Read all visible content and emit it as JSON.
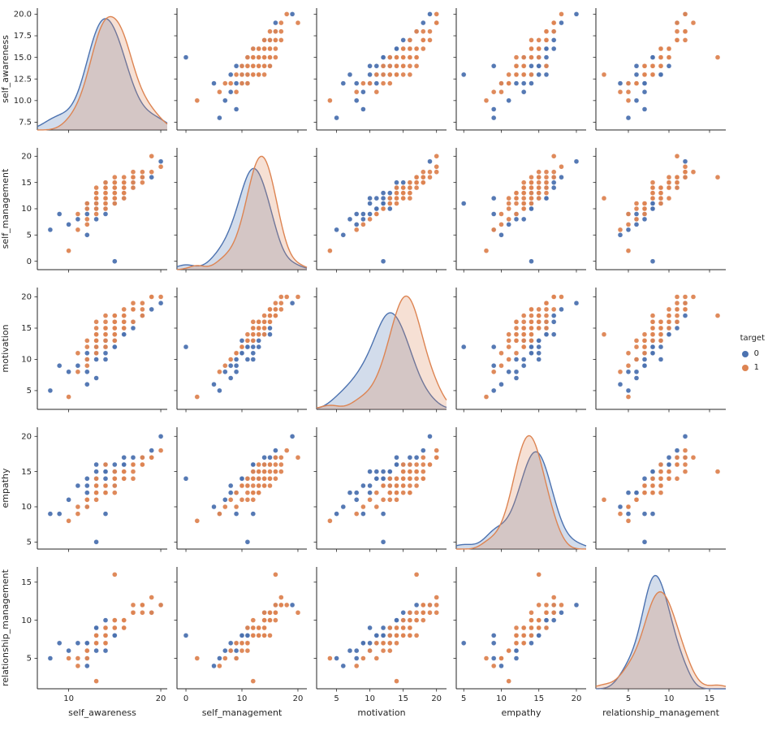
{
  "chart_data": {
    "type": "pairplot",
    "description": "Seaborn-style pair plot (scatter matrix) of 5 emotional-intelligence features colored by target class; diagonal shows KDE density curves per class.",
    "legend": {
      "title": "target",
      "entries": [
        {
          "label": "0",
          "color": "#4c72b0"
        },
        {
          "label": "1",
          "color": "#dd8452"
        }
      ]
    },
    "palette": {
      "0": "#4c72b0",
      "1": "#dd8452"
    },
    "style": {
      "spine_color": "#262626",
      "kde_fill_opacity": 0.25,
      "point_radius": 3,
      "background": "#ffffff"
    },
    "variables": [
      {
        "key": "self_awareness",
        "label": "self_awareness",
        "lim": [
          6.6,
          20.7
        ],
        "yticks": [
          7.5,
          10,
          12.5,
          15,
          17.5,
          20
        ],
        "ytick_labels": [
          "7.5",
          "10.0",
          "12.5",
          "15.0",
          "17.5",
          "20.0"
        ],
        "xticks": [
          10,
          20
        ],
        "xtick_labels": [
          "10",
          "20"
        ]
      },
      {
        "key": "self_management",
        "label": "self_management",
        "lim": [
          -1.6,
          21.6
        ],
        "yticks": [
          0,
          5,
          10,
          15,
          20
        ],
        "ytick_labels": [
          "0",
          "5",
          "10",
          "15",
          "20"
        ],
        "xticks": [
          0,
          10,
          20
        ],
        "xtick_labels": [
          "0",
          "10",
          "20"
        ]
      },
      {
        "key": "motivation",
        "label": "motivation",
        "lim": [
          2.0,
          21.5
        ],
        "yticks": [
          5,
          10,
          15,
          20
        ],
        "ytick_labels": [
          "5",
          "10",
          "15",
          "20"
        ],
        "xticks": [
          5,
          10,
          15,
          20
        ],
        "xtick_labels": [
          "5",
          "10",
          "15",
          "20"
        ]
      },
      {
        "key": "empathy",
        "label": "empathy",
        "lim": [
          4.0,
          21.3
        ],
        "yticks": [
          5,
          10,
          15,
          20
        ],
        "ytick_labels": [
          "5",
          "10",
          "15",
          "20"
        ],
        "xticks": [
          5,
          10,
          15,
          20
        ],
        "xtick_labels": [
          "5",
          "10",
          "15",
          "20"
        ]
      },
      {
        "key": "relationship_management",
        "label": "relationship_management",
        "lim": [
          1.0,
          17.0
        ],
        "yticks": [
          5,
          10,
          15
        ],
        "ytick_labels": [
          "5",
          "10",
          "15"
        ],
        "xticks": [
          5,
          10,
          15
        ],
        "xtick_labels": [
          "5",
          "10",
          "15"
        ]
      }
    ],
    "columns": [
      "self_awareness",
      "self_management",
      "motivation",
      "empathy",
      "relationship_management",
      "target"
    ],
    "records": [
      [
        13,
        11,
        12,
        14,
        8,
        0
      ],
      [
        14,
        12,
        13,
        15,
        9,
        0
      ],
      [
        15,
        13,
        14,
        13,
        8,
        0
      ],
      [
        12,
        10,
        11,
        14,
        7,
        0
      ],
      [
        16,
        14,
        15,
        15,
        10,
        0
      ],
      [
        14,
        9,
        10,
        12,
        6,
        0
      ],
      [
        13,
        12,
        14,
        16,
        9,
        0
      ],
      [
        15,
        11,
        12,
        14,
        8,
        0
      ],
      [
        17,
        15,
        16,
        17,
        11,
        0
      ],
      [
        11,
        8,
        9,
        13,
        7,
        0
      ],
      [
        14,
        13,
        13,
        15,
        8,
        0
      ],
      [
        16,
        12,
        15,
        16,
        9,
        0
      ],
      [
        13,
        10,
        11,
        14,
        8,
        0
      ],
      [
        15,
        14,
        16,
        15,
        10,
        0
      ],
      [
        12,
        9,
        8,
        12,
        5,
        0
      ],
      [
        18,
        16,
        17,
        17,
        12,
        0
      ],
      [
        14,
        11,
        13,
        13,
        7,
        0
      ],
      [
        13,
        12,
        10,
        15,
        9,
        0
      ],
      [
        16,
        15,
        14,
        16,
        10,
        0
      ],
      [
        15,
        0,
        12,
        14,
        8,
        0
      ],
      [
        10,
        7,
        8,
        11,
        6,
        0
      ],
      [
        14,
        12,
        12,
        9,
        8,
        0
      ],
      [
        9,
        9,
        9,
        9,
        7,
        0
      ],
      [
        17,
        14,
        15,
        16,
        11,
        0
      ],
      [
        13,
        13,
        14,
        14,
        9,
        0
      ],
      [
        15,
        12,
        13,
        15,
        8,
        0
      ],
      [
        16,
        13,
        16,
        14,
        9,
        0
      ],
      [
        12,
        11,
        10,
        13,
        7,
        0
      ],
      [
        14,
        15,
        15,
        16,
        10,
        0
      ],
      [
        19,
        16,
        18,
        18,
        11,
        0
      ],
      [
        13,
        8,
        7,
        12,
        6,
        0
      ],
      [
        15,
        13,
        12,
        15,
        9,
        0
      ],
      [
        14,
        10,
        13,
        14,
        8,
        0
      ],
      [
        16,
        14,
        14,
        17,
        10,
        0
      ],
      [
        12,
        5,
        6,
        10,
        4,
        0
      ],
      [
        20,
        19,
        19,
        20,
        12,
        0
      ],
      [
        14,
        12,
        11,
        15,
        8,
        0
      ],
      [
        13,
        11,
        13,
        13,
        9,
        0
      ],
      [
        15,
        15,
        16,
        16,
        10,
        0
      ],
      [
        8,
        6,
        5,
        9,
        5,
        0
      ],
      [
        13,
        11,
        12,
        5,
        7,
        0
      ],
      [
        14,
        13,
        15,
        13,
        8,
        1
      ],
      [
        15,
        14,
        16,
        14,
        9,
        1
      ],
      [
        13,
        12,
        14,
        12,
        8,
        1
      ],
      [
        16,
        15,
        17,
        15,
        10,
        1
      ],
      [
        14,
        11,
        13,
        13,
        7,
        1
      ],
      [
        17,
        16,
        18,
        14,
        11,
        1
      ],
      [
        15,
        13,
        16,
        12,
        9,
        1
      ],
      [
        12,
        10,
        12,
        11,
        6,
        1
      ],
      [
        16,
        14,
        15,
        15,
        10,
        1
      ],
      [
        13,
        13,
        14,
        14,
        8,
        1
      ],
      [
        18,
        17,
        19,
        16,
        12,
        1
      ],
      [
        14,
        12,
        15,
        13,
        9,
        1
      ],
      [
        15,
        15,
        17,
        14,
        10,
        1
      ],
      [
        11,
        9,
        11,
        10,
        5,
        1
      ],
      [
        16,
        13,
        16,
        15,
        9,
        1
      ],
      [
        13,
        11,
        13,
        12,
        7,
        1
      ],
      [
        17,
        15,
        18,
        16,
        11,
        1
      ],
      [
        14,
        14,
        16,
        13,
        8,
        1
      ],
      [
        15,
        12,
        14,
        14,
        9,
        1
      ],
      [
        12,
        8,
        10,
        11,
        6,
        1
      ],
      [
        16,
        16,
        17,
        15,
        10,
        1
      ],
      [
        14,
        13,
        15,
        12,
        8,
        1
      ],
      [
        13,
        10,
        12,
        13,
        7,
        1
      ],
      [
        18,
        16,
        18,
        17,
        12,
        1
      ],
      [
        15,
        14,
        15,
        14,
        9,
        1
      ],
      [
        16,
        12,
        16,
        15,
        10,
        1
      ],
      [
        14,
        15,
        17,
        13,
        8,
        1
      ],
      [
        13,
        9,
        11,
        12,
        7,
        1
      ],
      [
        17,
        14,
        16,
        16,
        11,
        1
      ],
      [
        15,
        13,
        14,
        13,
        9,
        1
      ],
      [
        12,
        11,
        13,
        11,
        6,
        1
      ],
      [
        16,
        15,
        16,
        14,
        10,
        1
      ],
      [
        14,
        12,
        14,
        12,
        8,
        1
      ],
      [
        19,
        17,
        20,
        17,
        13,
        1
      ],
      [
        13,
        14,
        15,
        13,
        8,
        1
      ],
      [
        15,
        11,
        13,
        14,
        9,
        1
      ],
      [
        16,
        14,
        17,
        15,
        10,
        1
      ],
      [
        14,
        10,
        12,
        13,
        7,
        1
      ],
      [
        17,
        16,
        19,
        16,
        11,
        1
      ],
      [
        15,
        15,
        16,
        14,
        10,
        1
      ],
      [
        13,
        12,
        13,
        12,
        8,
        1
      ],
      [
        12,
        7,
        9,
        10,
        5,
        1
      ],
      [
        16,
        13,
        15,
        15,
        9,
        1
      ],
      [
        14,
        14,
        14,
        13,
        8,
        1
      ],
      [
        18,
        15,
        17,
        16,
        11,
        1
      ],
      [
        15,
        12,
        15,
        14,
        9,
        1
      ],
      [
        13,
        13,
        16,
        12,
        8,
        1
      ],
      [
        17,
        17,
        18,
        15,
        12,
        1
      ],
      [
        14,
        11,
        14,
        13,
        7,
        1
      ],
      [
        16,
        14,
        16,
        14,
        10,
        1
      ],
      [
        15,
        16,
        17,
        15,
        16,
        1
      ],
      [
        11,
        6,
        8,
        9,
        4,
        1
      ],
      [
        16,
        15,
        18,
        14,
        10,
        1
      ],
      [
        14,
        13,
        15,
        16,
        9,
        1
      ],
      [
        20,
        18,
        20,
        18,
        12,
        1
      ],
      [
        13,
        12,
        14,
        11,
        2,
        1
      ],
      [
        10,
        2,
        4,
        8,
        5,
        1
      ],
      [
        19,
        20,
        20,
        17,
        11,
        1
      ]
    ]
  }
}
